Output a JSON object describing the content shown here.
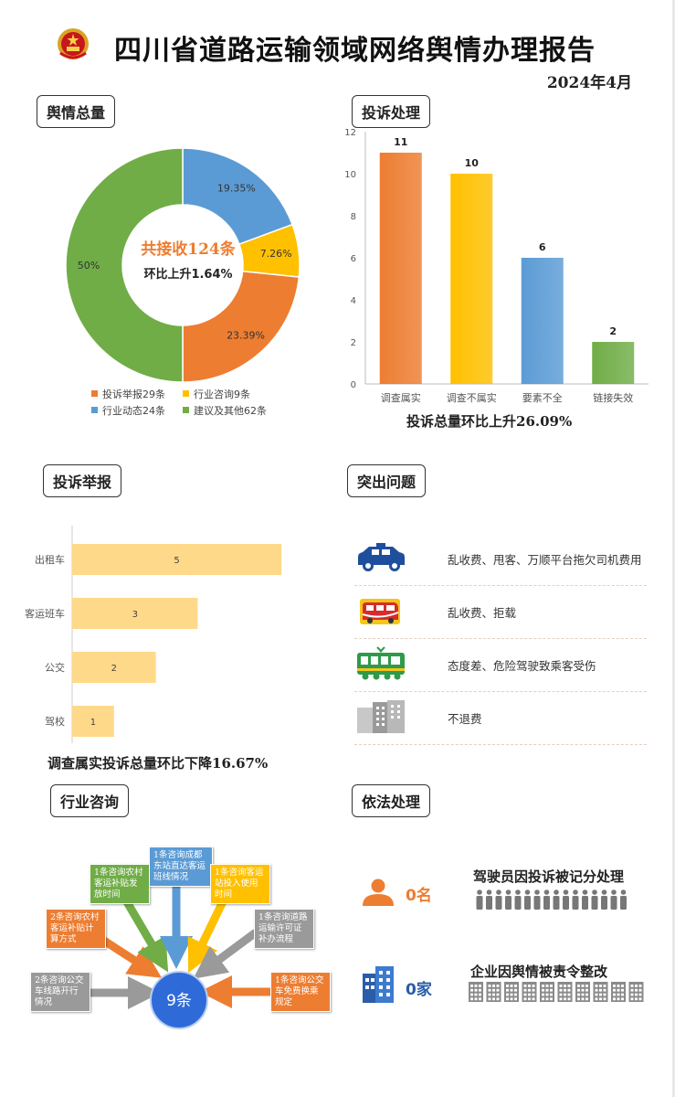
{
  "header": {
    "title": "四川省道路运输领域网络舆情办理报告",
    "date": "2024年4月"
  },
  "sections": {
    "total": "舆情总量",
    "complaint_handling": "投诉处理",
    "complaint_report": "投诉举报",
    "key_issues": "突出问题",
    "consulting": "行业咨询",
    "legal": "依法处理"
  },
  "pie": {
    "center_main": "共接收124条",
    "center_sub": "环比上升1.64%",
    "legend": [
      "投诉举报29条",
      "行业咨询9条",
      "行业动态24条",
      "建议及其他62条"
    ]
  },
  "handling_caption": "投诉总量环比上升26.09%",
  "report_caption": "调查属实投诉总量环比下降16.67%",
  "issues": [
    {
      "icon": "taxi-icon",
      "text": "乱收费、甩客、万顺平台拖欠司机费用"
    },
    {
      "icon": "coach-bus-icon",
      "text": "乱收费、拒载"
    },
    {
      "icon": "bus-icon",
      "text": "态度差、危险驾驶致乘客受伤"
    },
    {
      "icon": "building-icon",
      "text": "不退费"
    }
  ],
  "consult": {
    "center": "9条",
    "items": [
      "2条咨询公交车线路开行情况",
      "2条咨询农村客运补贴计算方式",
      "1条咨询农村客运补贴发放时间",
      "1条咨询成都东站直达客运班线情况",
      "1条咨询客运站投入使用时间",
      "1条咨询道路运输许可证补办流程",
      "1条咨询公交车免费换乘规定"
    ]
  },
  "legal": {
    "driver_count": "0名",
    "driver_text": "驾驶员因投诉被记分处理",
    "company_count": "0家",
    "company_text": "企业因舆情被责令整改"
  },
  "chart_data": [
    {
      "type": "pie",
      "slices": [
        {
          "name": "投诉举报",
          "value": 29,
          "label": "23.39%",
          "color": "#ED7D31"
        },
        {
          "name": "行业咨询",
          "value": 9,
          "label": "7.26%",
          "color": "#FFC000"
        },
        {
          "name": "行业动态",
          "value": 24,
          "label": "19.35%",
          "color": "#5B9BD5"
        },
        {
          "name": "建议及其他",
          "value": 62,
          "label": "50%",
          "color": "#70AD47"
        }
      ]
    },
    {
      "type": "bar",
      "categories": [
        "调查属实",
        "调查不属实",
        "要素不全",
        "链接失效"
      ],
      "values": [
        11,
        10,
        6,
        2
      ],
      "colors": [
        "#ED7D31",
        "#FFC000",
        "#5B9BD5",
        "#70AD47"
      ],
      "ylim": [
        0,
        12
      ],
      "yticks": [
        0,
        2,
        4,
        6,
        8,
        10,
        12
      ]
    },
    {
      "type": "bar",
      "orientation": "horizontal",
      "categories": [
        "出租车",
        "客运班车",
        "公交",
        "驾校"
      ],
      "values": [
        5,
        3,
        2,
        1
      ],
      "xlim": [
        0,
        6
      ],
      "color": "#FFD98A"
    }
  ]
}
